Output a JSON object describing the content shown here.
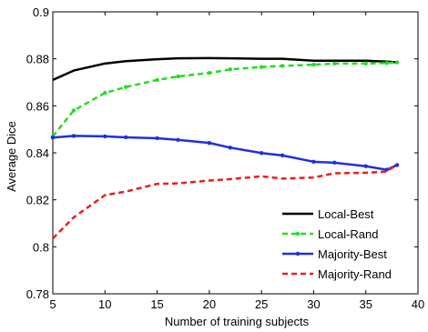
{
  "chart_data": {
    "type": "line",
    "xlabel": "Number of training subjects",
    "ylabel": "Average Dice",
    "xlim": [
      5,
      40
    ],
    "ylim": [
      0.78,
      0.9
    ],
    "xticks": [
      5,
      10,
      15,
      20,
      25,
      30,
      35,
      40
    ],
    "yticks": [
      0.78,
      0.8,
      0.82,
      0.84,
      0.86,
      0.88,
      0.9
    ],
    "xtick_labels": [
      "5",
      "10",
      "15",
      "20",
      "25",
      "30",
      "35",
      "40"
    ],
    "ytick_labels": [
      "0.78",
      "0.8",
      "0.82",
      "0.84",
      "0.86",
      "0.88",
      "0.9"
    ],
    "grid": false,
    "legend_position": "lower-right",
    "series": [
      {
        "name": "Local-Best",
        "color": "#000000",
        "style": "solid",
        "marker": "none",
        "x": [
          5,
          7,
          10,
          12,
          15,
          17,
          20,
          22,
          25,
          27,
          30,
          32,
          35,
          37,
          38
        ],
        "y": [
          0.871,
          0.875,
          0.878,
          0.879,
          0.8798,
          0.8802,
          0.8803,
          0.8802,
          0.88,
          0.88,
          0.8792,
          0.8792,
          0.8792,
          0.8788,
          0.8785
        ]
      },
      {
        "name": "Local-Rand",
        "color": "#22dd22",
        "style": "dashed",
        "marker": "dot",
        "x": [
          5,
          7,
          10,
          12,
          15,
          17,
          20,
          22,
          25,
          27,
          30,
          32,
          35,
          37,
          38
        ],
        "y": [
          0.847,
          0.858,
          0.8655,
          0.868,
          0.871,
          0.8725,
          0.874,
          0.8755,
          0.8765,
          0.877,
          0.8775,
          0.878,
          0.878,
          0.8782,
          0.8785
        ]
      },
      {
        "name": "Majority-Best",
        "color": "#1f2fdc",
        "style": "solid",
        "marker": "dot",
        "x": [
          5,
          7,
          10,
          12,
          15,
          17,
          20,
          22,
          25,
          27,
          30,
          32,
          35,
          37,
          38
        ],
        "y": [
          0.8465,
          0.8472,
          0.847,
          0.8466,
          0.8462,
          0.8455,
          0.8442,
          0.8422,
          0.8399,
          0.8389,
          0.8362,
          0.8358,
          0.8343,
          0.8328,
          0.8348
        ]
      },
      {
        "name": "Majority-Rand",
        "color": "#ee1c1c",
        "style": "dashed",
        "marker": "none",
        "x": [
          5,
          7,
          10,
          12,
          15,
          17,
          20,
          22,
          25,
          27,
          30,
          32,
          35,
          37,
          38
        ],
        "y": [
          0.8035,
          0.8125,
          0.822,
          0.8235,
          0.8268,
          0.827,
          0.8282,
          0.8288,
          0.83,
          0.829,
          0.8295,
          0.8313,
          0.8315,
          0.832,
          0.835
        ]
      }
    ]
  }
}
